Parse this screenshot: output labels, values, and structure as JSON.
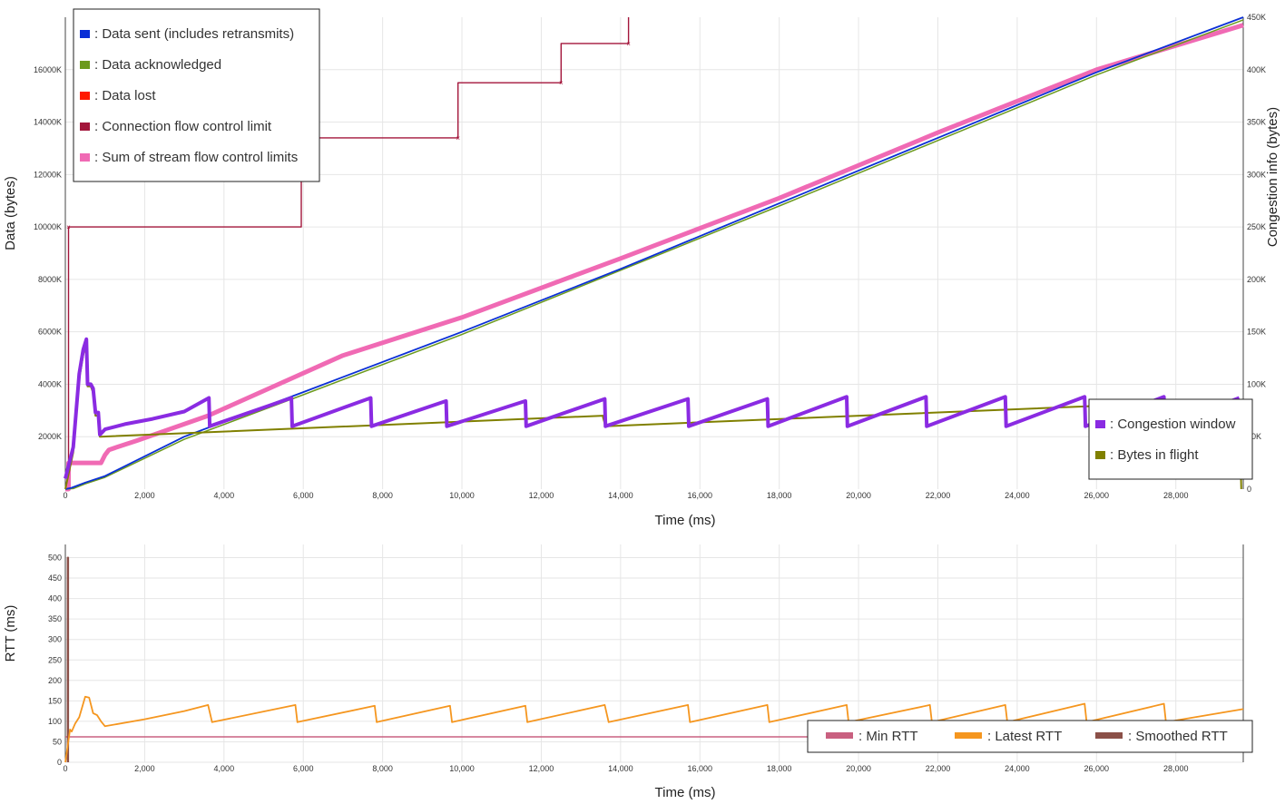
{
  "colors": {
    "data_sent": "#0a2fd6",
    "data_acknowledged": "#6c9a1e",
    "data_lost": "#ff1a00",
    "connection_flow_control_limit": "#a3163b",
    "sum_stream_flow_control_limits": "#f06ab4",
    "congestion_window": "#8a2be2",
    "bytes_in_flight": "#808000",
    "min_rtt": "#c96080",
    "latest_rtt": "#f5961f",
    "smoothed_rtt": "#8b5048"
  },
  "chart_data": [
    {
      "type": "line",
      "xlabel": "Time (ms)",
      "ylabel": "Data (bytes)",
      "y2label": "Congestion info (bytes)",
      "xlim": [
        0,
        29700
      ],
      "ylim": [
        0,
        18000000
      ],
      "y2lim": [
        0,
        450000
      ],
      "x_ticks": [
        "0",
        "2,000",
        "4,000",
        "6,000",
        "8,000",
        "10,000",
        "12,000",
        "14,000",
        "16,000",
        "18,000",
        "20,000",
        "22,000",
        "24,000",
        "26,000",
        "28,000"
      ],
      "x_tick_values": [
        0,
        2000,
        4000,
        6000,
        8000,
        10000,
        12000,
        14000,
        16000,
        18000,
        20000,
        22000,
        24000,
        26000,
        28000
      ],
      "y_ticks": [
        "2000K",
        "4000K",
        "6000K",
        "8000K",
        "10000K",
        "12000K",
        "14000K",
        "16000K"
      ],
      "y_tick_values": [
        2000000,
        4000000,
        6000000,
        8000000,
        10000000,
        12000000,
        14000000,
        16000000
      ],
      "y2_ticks": [
        "0",
        "50K",
        "100K",
        "150K",
        "200K",
        "250K",
        "300K",
        "350K",
        "400K",
        "450K"
      ],
      "y2_tick_values": [
        0,
        50000,
        100000,
        150000,
        200000,
        250000,
        300000,
        350000,
        400000,
        450000
      ],
      "legend_top": [
        {
          "key": "data_sent",
          "label": ": Data sent (includes retransmits)"
        },
        {
          "key": "data_acknowledged",
          "label": ": Data acknowledged"
        },
        {
          "key": "data_lost",
          "label": ": Data lost"
        },
        {
          "key": "connection_flow_control_limit",
          "label": ": Connection flow control limit"
        },
        {
          "key": "sum_stream_flow_control_limits",
          "label": ": Sum of stream flow control limits"
        }
      ],
      "legend_right": [
        {
          "key": "congestion_window",
          "label": ": Congestion window"
        },
        {
          "key": "bytes_in_flight",
          "label": ": Bytes in flight"
        }
      ],
      "series": {
        "data_sent": {
          "axis": "y",
          "x": [
            0,
            150,
            500,
            1000,
            3000,
            6000,
            10000,
            14000,
            18000,
            22000,
            26000,
            29700
          ],
          "y": [
            0,
            50000,
            250000,
            500000,
            2000000,
            3700000,
            6000000,
            8400000,
            10900000,
            13400000,
            15900000,
            18000000
          ]
        },
        "data_acknowledged": {
          "axis": "y",
          "x": [
            0,
            200,
            500,
            1000,
            3000,
            6000,
            10000,
            14000,
            18000,
            22000,
            26000,
            29700
          ],
          "y": [
            0,
            20000,
            200000,
            450000,
            1900000,
            3600000,
            5900000,
            8350000,
            10800000,
            13300000,
            15800000,
            17900000
          ]
        },
        "connection_flow_control_limit": {
          "axis": "y",
          "x": [
            0,
            80,
            80,
            5950,
            5950,
            7600,
            9900,
            9900,
            12500,
            12500,
            14200,
            14200
          ],
          "y": [
            0,
            0,
            10000000,
            10000000,
            13400000,
            13400000,
            13400000,
            15500000,
            15500000,
            17000000,
            17000000,
            18000000
          ]
        },
        "sum_stream_flow_control_limits": {
          "axis": "y",
          "x": [
            0,
            80,
            80,
            900,
            1000,
            1100,
            1300,
            1500,
            1800,
            3600,
            7000,
            10000,
            14000,
            18000,
            22000,
            26000,
            29700
          ],
          "y": [
            0,
            0,
            1000000,
            1000000,
            1300000,
            1500000,
            1600000,
            1700000,
            1850000,
            2800000,
            5100000,
            6550000,
            8800000,
            11100000,
            13600000,
            16000000,
            17700000
          ]
        },
        "congestion_window": {
          "axis": "y2",
          "x": [
            0,
            200,
            350,
            450,
            530,
            560,
            640,
            700,
            760,
            830,
            870,
            900,
            1000,
            1500,
            2200,
            3000,
            3620,
            3640,
            5700,
            5720,
            7700,
            7720,
            9600,
            9620,
            11600,
            11620,
            13600,
            13620,
            15700,
            15720,
            17700,
            17720,
            19700,
            19720,
            21700,
            21720,
            23700,
            23720,
            25700,
            25720,
            27700,
            27720,
            29600
          ],
          "y": [
            10000,
            40000,
            110000,
            133000,
            143000,
            100000,
            100000,
            96000,
            73000,
            73000,
            52000,
            53000,
            57000,
            62000,
            67000,
            74000,
            87000,
            60000,
            87000,
            60000,
            87000,
            60000,
            84000,
            60000,
            84000,
            60000,
            86000,
            60000,
            86000,
            60000,
            86000,
            60000,
            88000,
            60000,
            88000,
            60000,
            88000,
            60000,
            88000,
            60000,
            88000,
            60000,
            87000
          ]
        },
        "bytes_in_flight": {
          "axis": "y2",
          "x": [
            0,
            200,
            350,
            450,
            530,
            560,
            640,
            700,
            760,
            830,
            870,
            900,
            13560,
            13560,
            13620,
            29600,
            29650
          ],
          "y": [
            0,
            35000,
            105000,
            128000,
            140000,
            98000,
            98000,
            92000,
            70000,
            70000,
            50000,
            50000,
            70000,
            68000,
            60000,
            85000,
            0
          ]
        }
      }
    },
    {
      "type": "line",
      "xlabel": "Time (ms)",
      "ylabel": "RTT (ms)",
      "xlim": [
        0,
        29700
      ],
      "ylim": [
        0,
        510
      ],
      "x_ticks": [
        "0",
        "2,000",
        "4,000",
        "6,000",
        "8,000",
        "10,000",
        "12,000",
        "14,000",
        "16,000",
        "18,000",
        "20,000",
        "22,000",
        "24,000",
        "26,000",
        "28,000"
      ],
      "x_tick_values": [
        0,
        2000,
        4000,
        6000,
        8000,
        10000,
        12000,
        14000,
        16000,
        18000,
        20000,
        22000,
        24000,
        26000,
        28000
      ],
      "y_ticks": [
        "0",
        "50",
        "100",
        "150",
        "200",
        "250",
        "300",
        "350",
        "400",
        "450",
        "500"
      ],
      "y_tick_values": [
        0,
        50,
        100,
        150,
        200,
        250,
        300,
        350,
        400,
        450,
        500
      ],
      "legend": [
        {
          "key": "min_rtt",
          "label": ": Min RTT"
        },
        {
          "key": "latest_rtt",
          "label": ": Latest RTT"
        },
        {
          "key": "smoothed_rtt",
          "label": ": Smoothed RTT"
        }
      ],
      "series": {
        "min_rtt": {
          "x": [
            0,
            29700
          ],
          "y": [
            62,
            62
          ]
        },
        "latest_rtt": {
          "x": [
            0,
            120,
            160,
            250,
            350,
            500,
            600,
            700,
            800,
            900,
            1000,
            2000,
            3000,
            3600,
            3700,
            5800,
            5850,
            7800,
            7850,
            9700,
            9750,
            11600,
            11650,
            13600,
            13700,
            15700,
            15750,
            17700,
            17750,
            19700,
            19750,
            21800,
            21850,
            23700,
            23750,
            25700,
            25750,
            27700,
            27750,
            29700
          ],
          "y": [
            0,
            80,
            75,
            95,
            110,
            160,
            158,
            120,
            115,
            100,
            88,
            105,
            125,
            140,
            98,
            140,
            98,
            138,
            98,
            138,
            98,
            138,
            98,
            140,
            98,
            140,
            98,
            140,
            98,
            140,
            98,
            140,
            98,
            140,
            98,
            143,
            98,
            143,
            98,
            130
          ]
        },
        "smoothed_rtt": {
          "x": [
            60,
            60,
            70,
            70
          ],
          "y": [
            0,
            500,
            500,
            0
          ]
        }
      }
    }
  ]
}
